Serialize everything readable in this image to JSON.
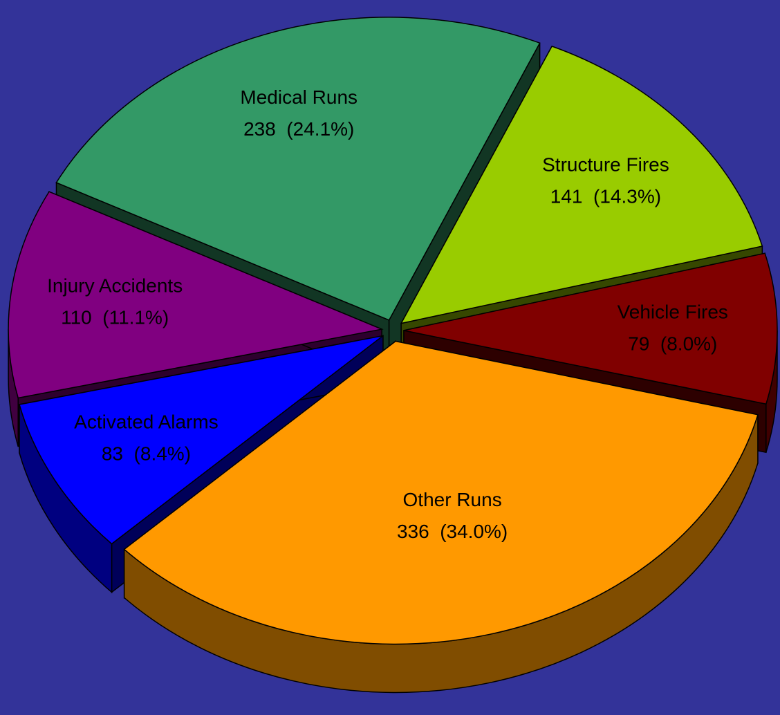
{
  "chart_data": {
    "type": "pie",
    "categories": [
      "Medical Runs",
      "Structure Fires",
      "Vehicle Fires",
      "Other Runs",
      "Activated Alarms",
      "Injury Accidents"
    ],
    "values": [
      238,
      141,
      79,
      336,
      83,
      110
    ],
    "value_labels": [
      "238  (24.1%)",
      "141  (14.3%)",
      "79  (8.0%)",
      "336  (34.0%)",
      "83  (8.4%)",
      "110  (11.1%)"
    ],
    "colors": [
      "#339966",
      "#99cc00",
      "#800000",
      "#ff9900",
      "#0000ff",
      "#800080"
    ]
  }
}
